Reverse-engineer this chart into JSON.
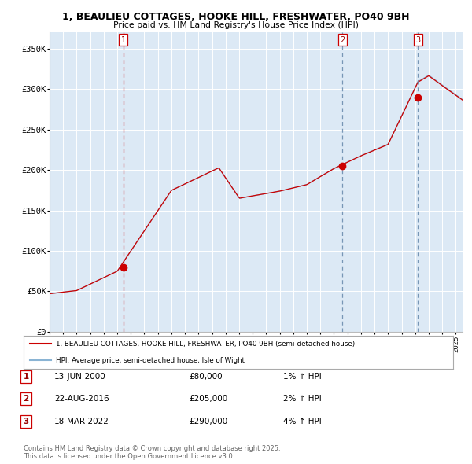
{
  "title_line1": "1, BEAULIEU COTTAGES, HOOKE HILL, FRESHWATER, PO40 9BH",
  "title_line2": "Price paid vs. HM Land Registry's House Price Index (HPI)",
  "bg_color": "#dce9f5",
  "plot_bg_color": "#dce9f5",
  "line1_color": "#cc0000",
  "line2_color": "#8ab4d4",
  "sale_marker_color": "#cc0000",
  "vline1_color": "#cc0000",
  "vline2_color": "#6688aa",
  "vline3_color": "#6688aa",
  "sale_dates": [
    2000.45,
    2016.64,
    2022.21
  ],
  "sale_prices": [
    80000,
    205000,
    290000
  ],
  "sale_labels": [
    "1",
    "2",
    "3"
  ],
  "legend_label1": "1, BEAULIEU COTTAGES, HOOKE HILL, FRESHWATER, PO40 9BH (semi-detached house)",
  "legend_label2": "HPI: Average price, semi-detached house, Isle of Wight",
  "table_rows": [
    [
      "1",
      "13-JUN-2000",
      "£80,000",
      "1% ↑ HPI"
    ],
    [
      "2",
      "22-AUG-2016",
      "£205,000",
      "2% ↑ HPI"
    ],
    [
      "3",
      "18-MAR-2022",
      "£290,000",
      "4% ↑ HPI"
    ]
  ],
  "footer": "Contains HM Land Registry data © Crown copyright and database right 2025.\nThis data is licensed under the Open Government Licence v3.0.",
  "ylabel_ticks": [
    0,
    50000,
    100000,
    150000,
    200000,
    250000,
    300000,
    350000
  ],
  "ylabel_labels": [
    "£0",
    "£50K",
    "£100K",
    "£150K",
    "£200K",
    "£250K",
    "£300K",
    "£350K"
  ],
  "xmin": 1995.0,
  "xmax": 2025.5,
  "ymin": 0,
  "ymax": 370000
}
